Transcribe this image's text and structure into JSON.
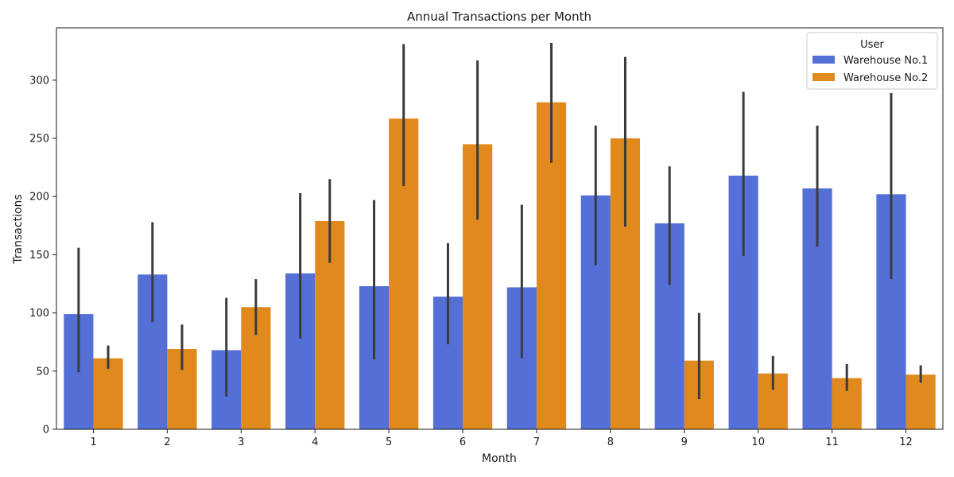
{
  "chart_data": {
    "type": "bar",
    "title": "Annual Transactions per Month",
    "xlabel": "Month",
    "ylabel": "Transactions",
    "categories": [
      "1",
      "2",
      "3",
      "4",
      "5",
      "6",
      "7",
      "8",
      "9",
      "10",
      "11",
      "12"
    ],
    "ylim": [
      0,
      345
    ],
    "yticks": [
      0,
      50,
      100,
      150,
      200,
      250,
      300
    ],
    "grid": false,
    "legend": {
      "title": "User",
      "placement": "top-right"
    },
    "series": [
      {
        "name": "Warehouse No.1",
        "color": "#4169e1",
        "values": [
          99,
          133,
          68,
          134,
          123,
          114,
          122,
          201,
          177,
          218,
          207,
          202
        ],
        "error_low": [
          49,
          92,
          28,
          78,
          60,
          73,
          61,
          141,
          124,
          149,
          157,
          129
        ],
        "error_high": [
          156,
          178,
          113,
          203,
          197,
          160,
          193,
          261,
          226,
          290,
          261,
          289
        ]
      },
      {
        "name": "Warehouse No.2",
        "color": "#ff8c00",
        "values": [
          61,
          69,
          105,
          179,
          267,
          245,
          281,
          250,
          59,
          48,
          44,
          47
        ],
        "error_low": [
          52,
          51,
          81,
          143,
          209,
          180,
          229,
          174,
          26,
          34,
          33,
          40
        ],
        "error_high": [
          72,
          90,
          129,
          215,
          331,
          317,
          332,
          320,
          100,
          63,
          56,
          55
        ]
      }
    ],
    "error_bar_color": "#3b3b3b"
  }
}
